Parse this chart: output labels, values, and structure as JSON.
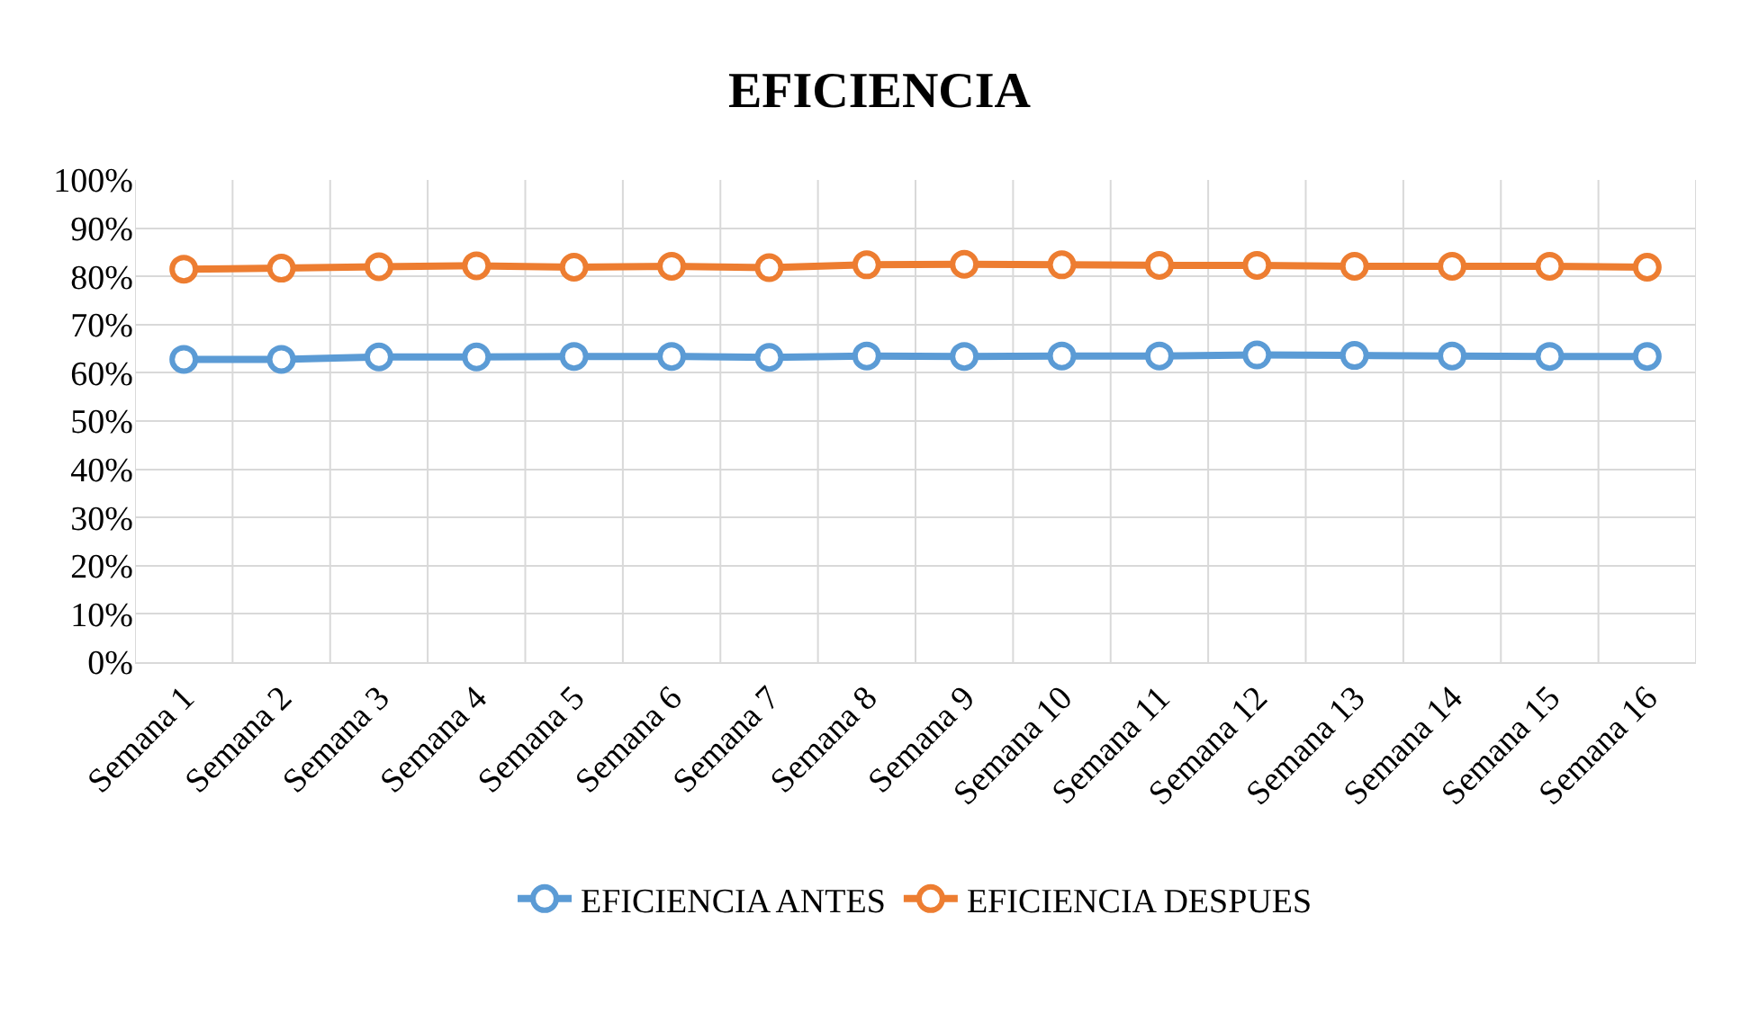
{
  "chart_data": {
    "type": "line",
    "title": "EFICIENCIA",
    "categories": [
      "Semana 1",
      "Semana 2",
      "Semana 3",
      "Semana 4",
      "Semana 5",
      "Semana 6",
      "Semana 7",
      "Semana 8",
      "Semana 9",
      "Semana 10",
      "Semana 11",
      "Semana 12",
      "Semana 13",
      "Semana 14",
      "Semana 15",
      "Semana 16"
    ],
    "series": [
      {
        "name": "EFICIENCIA ANTES",
        "color": "#5b9bd5",
        "values": [
          62.8,
          62.8,
          63.3,
          63.3,
          63.4,
          63.4,
          63.2,
          63.5,
          63.4,
          63.5,
          63.5,
          63.7,
          63.6,
          63.5,
          63.4,
          63.4
        ]
      },
      {
        "name": "EFICIENCIA DESPUES",
        "color": "#ed7d31",
        "values": [
          81.5,
          81.7,
          82.0,
          82.2,
          81.9,
          82.1,
          81.8,
          82.4,
          82.5,
          82.4,
          82.3,
          82.3,
          82.1,
          82.1,
          82.1,
          81.9
        ]
      }
    ],
    "ylim": [
      0,
      100
    ],
    "yticks": [
      {
        "value": 0,
        "label": "0%"
      },
      {
        "value": 10,
        "label": "10%"
      },
      {
        "value": 20,
        "label": "20%"
      },
      {
        "value": 30,
        "label": "30%"
      },
      {
        "value": 40,
        "label": "40%"
      },
      {
        "value": 50,
        "label": "50%"
      },
      {
        "value": 60,
        "label": "60%"
      },
      {
        "value": 70,
        "label": "70%"
      },
      {
        "value": 80,
        "label": "80%"
      },
      {
        "value": 90,
        "label": "90%"
      },
      {
        "value": 100,
        "label": "100%"
      }
    ],
    "grid": true,
    "legend": "bottom",
    "marker": "circle",
    "line_style": "solid"
  }
}
